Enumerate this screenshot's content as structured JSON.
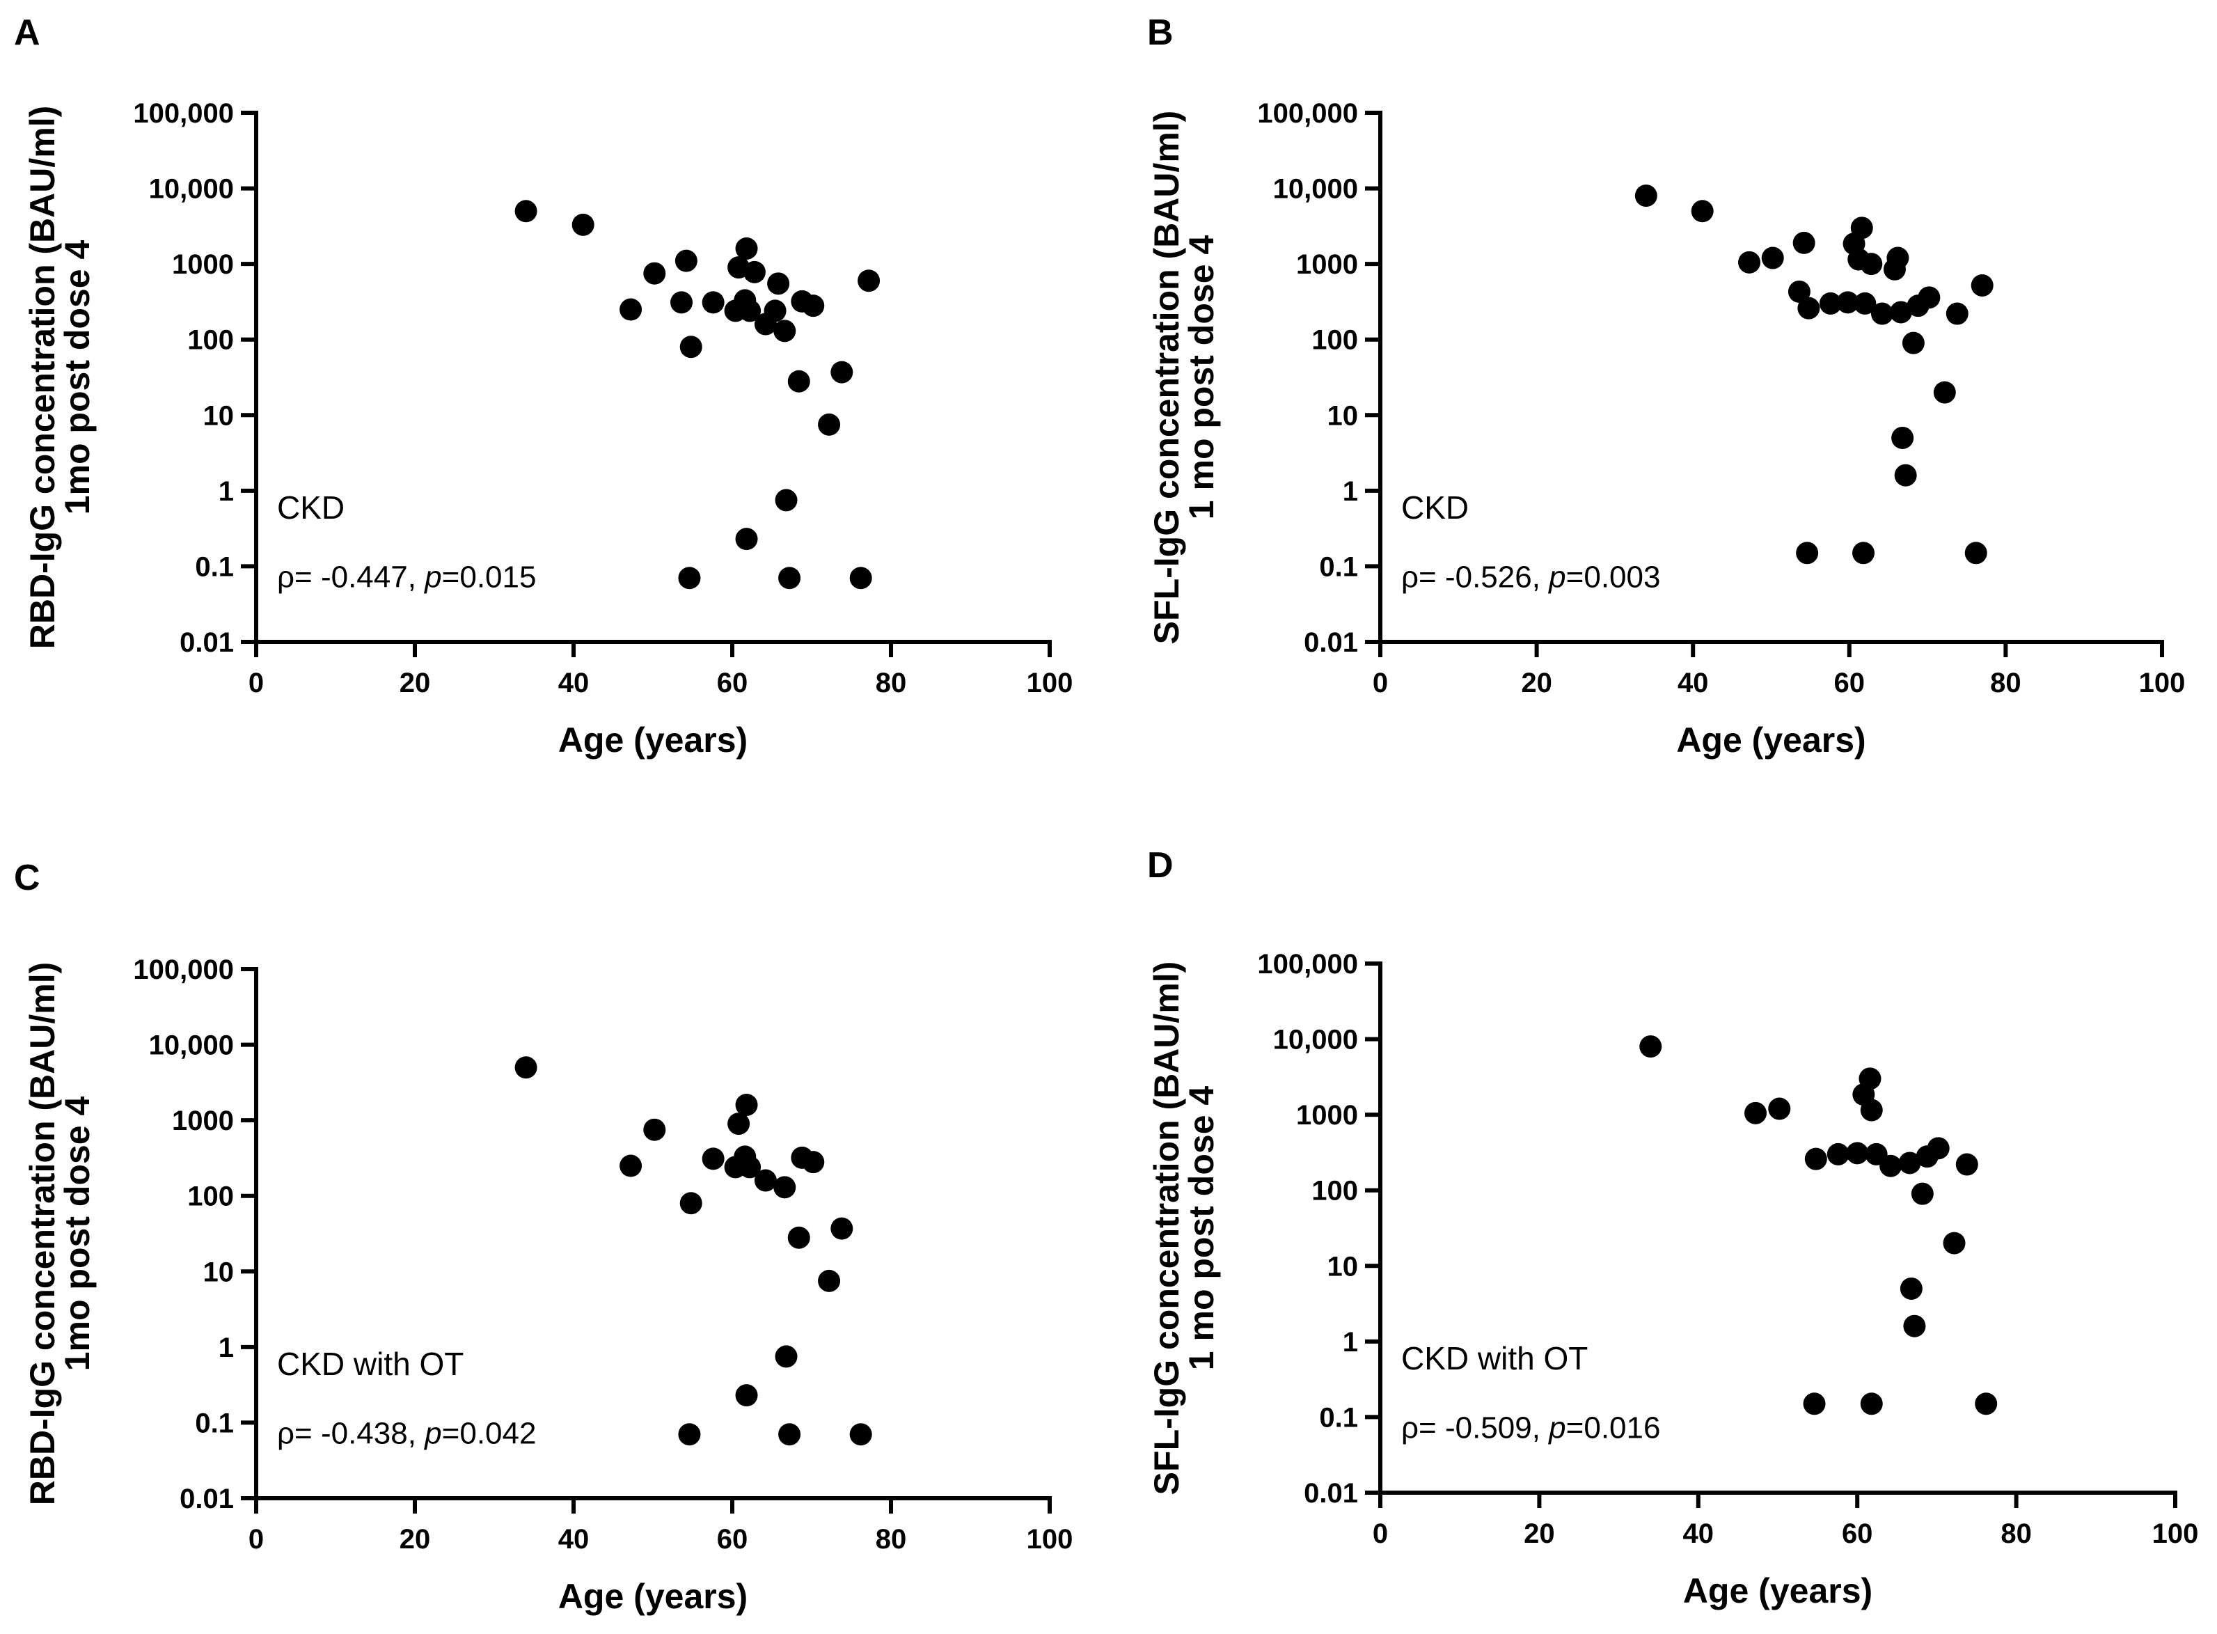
{
  "chart_data": [
    {
      "panel": "A",
      "type": "scatter",
      "xlabel": "Age (years)",
      "ylabel_line1": "RBD-IgG concentration (BAU/ml)",
      "ylabel_line2": "1mo post dose 4",
      "xlim": [
        0,
        100
      ],
      "xticks": [
        0,
        20,
        40,
        60,
        80,
        100
      ],
      "xtick_labels": [
        "0",
        "20",
        "40",
        "60",
        "80",
        "100"
      ],
      "yscale": "log",
      "ylim": [
        0.01,
        100000
      ],
      "yticks": [
        0.01,
        0.1,
        1,
        10,
        100,
        1000,
        10000,
        100000
      ],
      "ytick_labels": [
        "0.01",
        "0.1",
        "1",
        "10",
        "100",
        "1000",
        "10,000",
        "100,000"
      ],
      "group_label": "CKD",
      "stat": {
        "rho_prefix": "ρ= -0.447, ",
        "p_symbol": "p",
        "p_value": "=0.015"
      },
      "points": [
        [
          34,
          5000
        ],
        [
          41.2,
          3300
        ],
        [
          47.2,
          250
        ],
        [
          50.2,
          750
        ],
        [
          53.6,
          310
        ],
        [
          54.2,
          1100
        ],
        [
          54.6,
          0.07
        ],
        [
          54.8,
          80
        ],
        [
          57.6,
          310
        ],
        [
          60.4,
          240
        ],
        [
          60.8,
          900
        ],
        [
          61.6,
          330
        ],
        [
          61.8,
          1600
        ],
        [
          61.8,
          0.23
        ],
        [
          62.2,
          240
        ],
        [
          62.8,
          780
        ],
        [
          64.2,
          160
        ],
        [
          65.4,
          240
        ],
        [
          65.8,
          550
        ],
        [
          66.6,
          130
        ],
        [
          66.8,
          0.75
        ],
        [
          67.2,
          0.07
        ],
        [
          68.4,
          28
        ],
        [
          68.8,
          320
        ],
        [
          70.2,
          280
        ],
        [
          72.2,
          7.5
        ],
        [
          73.8,
          37
        ],
        [
          76.2,
          0.07
        ],
        [
          77.2,
          600
        ]
      ]
    },
    {
      "panel": "B",
      "type": "scatter",
      "xlabel": "Age (years)",
      "ylabel_line1": "SFL-IgG concentration (BAU/ml)",
      "ylabel_line2": "1 mo post dose 4",
      "xlim": [
        0,
        100
      ],
      "xticks": [
        0,
        20,
        40,
        60,
        80,
        100
      ],
      "xtick_labels": [
        "0",
        "20",
        "40",
        "60",
        "80",
        "100"
      ],
      "yscale": "log",
      "ylim": [
        0.01,
        100000
      ],
      "yticks": [
        0.01,
        0.1,
        1,
        10,
        100,
        1000,
        10000,
        100000
      ],
      "ytick_labels": [
        "0.01",
        "0.1",
        "1",
        "10",
        "100",
        "1000",
        "10,000",
        "100,000"
      ],
      "group_label": "CKD",
      "stat": {
        "rho_prefix": "ρ= -0.526, ",
        "p_symbol": "p",
        "p_value": "=0.003"
      },
      "points": [
        [
          34,
          8000
        ],
        [
          41.2,
          5000
        ],
        [
          47.2,
          1050
        ],
        [
          50.2,
          1200
        ],
        [
          53.6,
          430
        ],
        [
          54.2,
          1900
        ],
        [
          54.6,
          0.15
        ],
        [
          54.8,
          260
        ],
        [
          57.6,
          300
        ],
        [
          59.8,
          310
        ],
        [
          60.6,
          1850
        ],
        [
          61.2,
          1150
        ],
        [
          61.6,
          3000
        ],
        [
          61.8,
          0.15
        ],
        [
          62,
          300
        ],
        [
          62.8,
          1000
        ],
        [
          64.2,
          220
        ],
        [
          65.8,
          850
        ],
        [
          66.2,
          1200
        ],
        [
          66.6,
          230
        ],
        [
          66.8,
          5
        ],
        [
          67.2,
          1.6
        ],
        [
          68.2,
          90
        ],
        [
          68.8,
          280
        ],
        [
          70.2,
          360
        ],
        [
          72.2,
          20
        ],
        [
          73.8,
          220
        ],
        [
          76.2,
          0.15
        ],
        [
          77,
          520
        ]
      ]
    },
    {
      "panel": "C",
      "type": "scatter",
      "xlabel": "Age (years)",
      "ylabel_line1": "RBD-IgG concentration (BAU/ml)",
      "ylabel_line2": "1mo post dose 4",
      "xlim": [
        0,
        100
      ],
      "xticks": [
        0,
        20,
        40,
        60,
        80,
        100
      ],
      "xtick_labels": [
        "0",
        "20",
        "40",
        "60",
        "80",
        "100"
      ],
      "yscale": "log",
      "ylim": [
        0.01,
        100000
      ],
      "yticks": [
        0.01,
        0.1,
        1,
        10,
        100,
        1000,
        10000,
        100000
      ],
      "ytick_labels": [
        "0.01",
        "0.1",
        "1",
        "10",
        "100",
        "1000",
        "10,000",
        "100,000"
      ],
      "group_label": "CKD with OT",
      "stat": {
        "rho_prefix": "ρ= -0.438, ",
        "p_symbol": "p",
        "p_value": "=0.042"
      },
      "points": [
        [
          34,
          5000
        ],
        [
          47.2,
          250
        ],
        [
          50.2,
          750
        ],
        [
          54.6,
          0.07
        ],
        [
          54.8,
          80
        ],
        [
          57.6,
          310
        ],
        [
          60.4,
          240
        ],
        [
          60.8,
          900
        ],
        [
          61.6,
          330
        ],
        [
          61.8,
          1600
        ],
        [
          61.8,
          0.23
        ],
        [
          62.2,
          240
        ],
        [
          64.2,
          160
        ],
        [
          66.6,
          130
        ],
        [
          66.8,
          0.75
        ],
        [
          67.2,
          0.07
        ],
        [
          68.4,
          28
        ],
        [
          68.8,
          320
        ],
        [
          70.2,
          280
        ],
        [
          72.2,
          7.5
        ],
        [
          73.8,
          37
        ],
        [
          76.2,
          0.07
        ]
      ]
    },
    {
      "panel": "D",
      "type": "scatter",
      "xlabel": "Age (years)",
      "ylabel_line1": "SFL-IgG concentration (BAU/ml)",
      "ylabel_line2": "1 mo post dose 4",
      "xlim": [
        0,
        100
      ],
      "xticks": [
        0,
        20,
        40,
        60,
        80,
        100
      ],
      "xtick_labels": [
        "0",
        "20",
        "40",
        "60",
        "80",
        "100"
      ],
      "yscale": "log",
      "ylim": [
        0.01,
        100000
      ],
      "yticks": [
        0.01,
        0.1,
        1,
        10,
        100,
        1000,
        10000,
        100000
      ],
      "ytick_labels": [
        "0.01",
        "0.1",
        "1",
        "10",
        "100",
        "1000",
        "10,000",
        "100,000"
      ],
      "group_label": "CKD with OT",
      "stat": {
        "rho_prefix": "ρ= -0.509, ",
        "p_symbol": "p",
        "p_value": "=0.016"
      },
      "points": [
        [
          34,
          8000
        ],
        [
          47.2,
          1050
        ],
        [
          50.2,
          1200
        ],
        [
          54.6,
          0.15
        ],
        [
          54.8,
          260
        ],
        [
          57.6,
          300
        ],
        [
          60,
          310
        ],
        [
          60.8,
          1850
        ],
        [
          61.6,
          3000
        ],
        [
          61.8,
          1150
        ],
        [
          61.8,
          0.15
        ],
        [
          62.4,
          300
        ],
        [
          64.2,
          210
        ],
        [
          66.6,
          230
        ],
        [
          66.8,
          5
        ],
        [
          67.2,
          1.6
        ],
        [
          68.2,
          90
        ],
        [
          68.8,
          280
        ],
        [
          70.2,
          360
        ],
        [
          72.2,
          20
        ],
        [
          73.8,
          220
        ],
        [
          76.2,
          0.15
        ]
      ]
    }
  ]
}
